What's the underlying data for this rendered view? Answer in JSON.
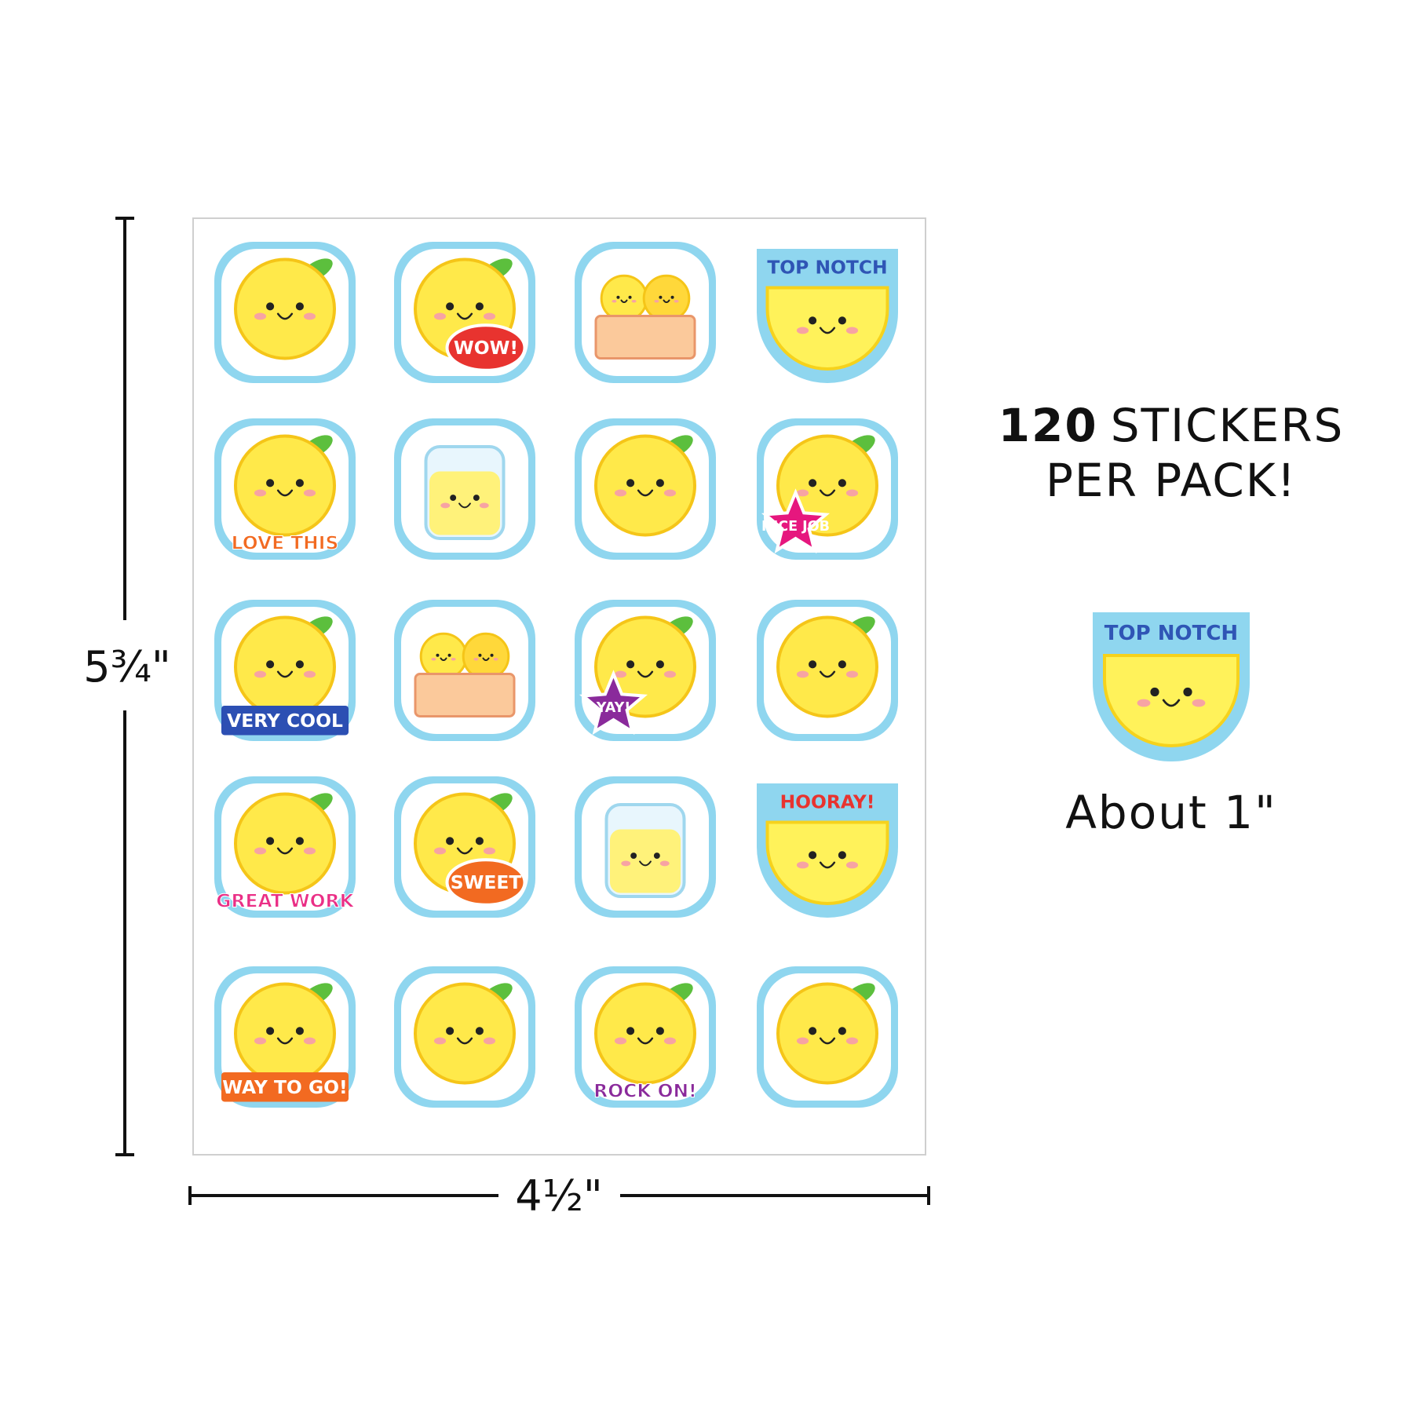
{
  "sheet": {
    "height_label": "5¾\"",
    "width_label": "4½\"",
    "stickers": [
      "WOW!",
      "TOP NOTCH",
      "LOVE THIS",
      "NICE JOB",
      "VERY COOL",
      "YAY!",
      "GREAT WORK",
      "SWEET",
      "HOORAY!",
      "WAY TO GO!",
      "ROCK ON!"
    ]
  },
  "pack": {
    "count": "120",
    "unit": "STICKERS",
    "line2": "PER PACK!"
  },
  "sample": {
    "label": "TOP NOTCH",
    "caption": "About 1\""
  }
}
